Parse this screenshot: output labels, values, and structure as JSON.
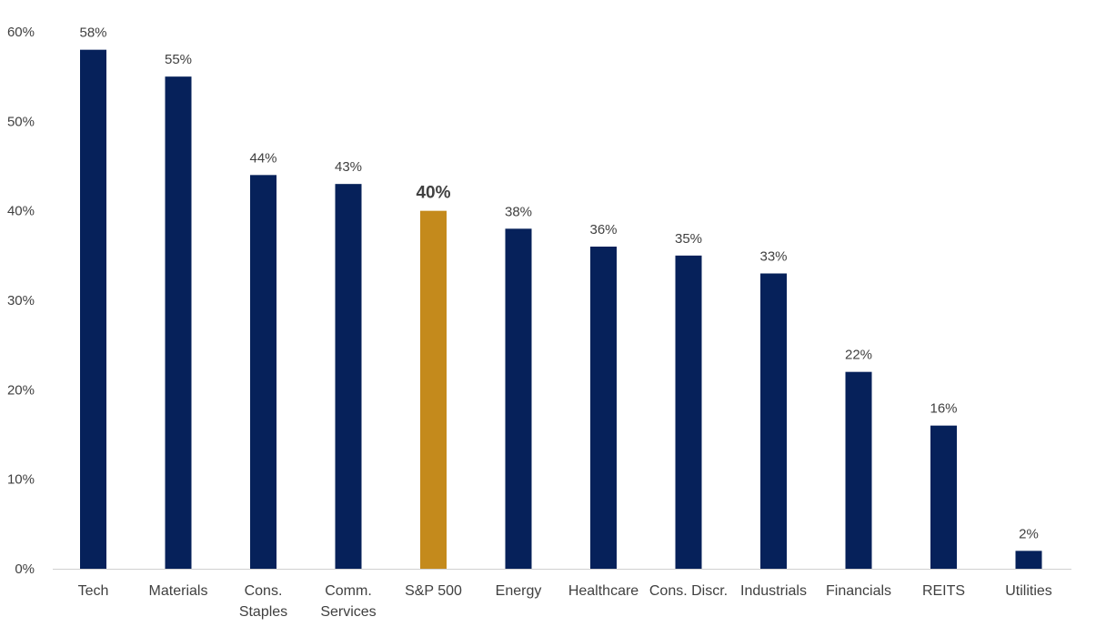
{
  "chart_data": {
    "type": "bar",
    "title": "",
    "xlabel": "",
    "ylabel": "",
    "ylim": [
      0,
      60
    ],
    "yticks": [
      0,
      10,
      20,
      30,
      40,
      50,
      60
    ],
    "ytick_labels": [
      "0%",
      "10%",
      "20%",
      "30%",
      "40%",
      "50%",
      "60%"
    ],
    "grid": false,
    "legend": "none",
    "categories": [
      [
        "Tech"
      ],
      [
        "Materials"
      ],
      [
        "Cons.",
        "Staples"
      ],
      [
        "Comm.",
        "Services"
      ],
      [
        "S&P 500"
      ],
      [
        "Energy"
      ],
      [
        "Healthcare"
      ],
      [
        "Cons. Discr."
      ],
      [
        "Industrials"
      ],
      [
        "Financials"
      ],
      [
        "REITS"
      ],
      [
        "Utilities"
      ]
    ],
    "values": [
      58,
      55,
      44,
      43,
      40,
      38,
      36,
      35,
      33,
      22,
      16,
      2
    ],
    "data_labels": [
      "58%",
      "55%",
      "44%",
      "43%",
      "40%",
      "38%",
      "36%",
      "35%",
      "33%",
      "22%",
      "16%",
      "2%"
    ],
    "highlight_index": 4,
    "colors": {
      "bar": "#06215A",
      "highlight": "#C48A1C",
      "axis": "#D0D0D0",
      "text": "#404040"
    }
  }
}
